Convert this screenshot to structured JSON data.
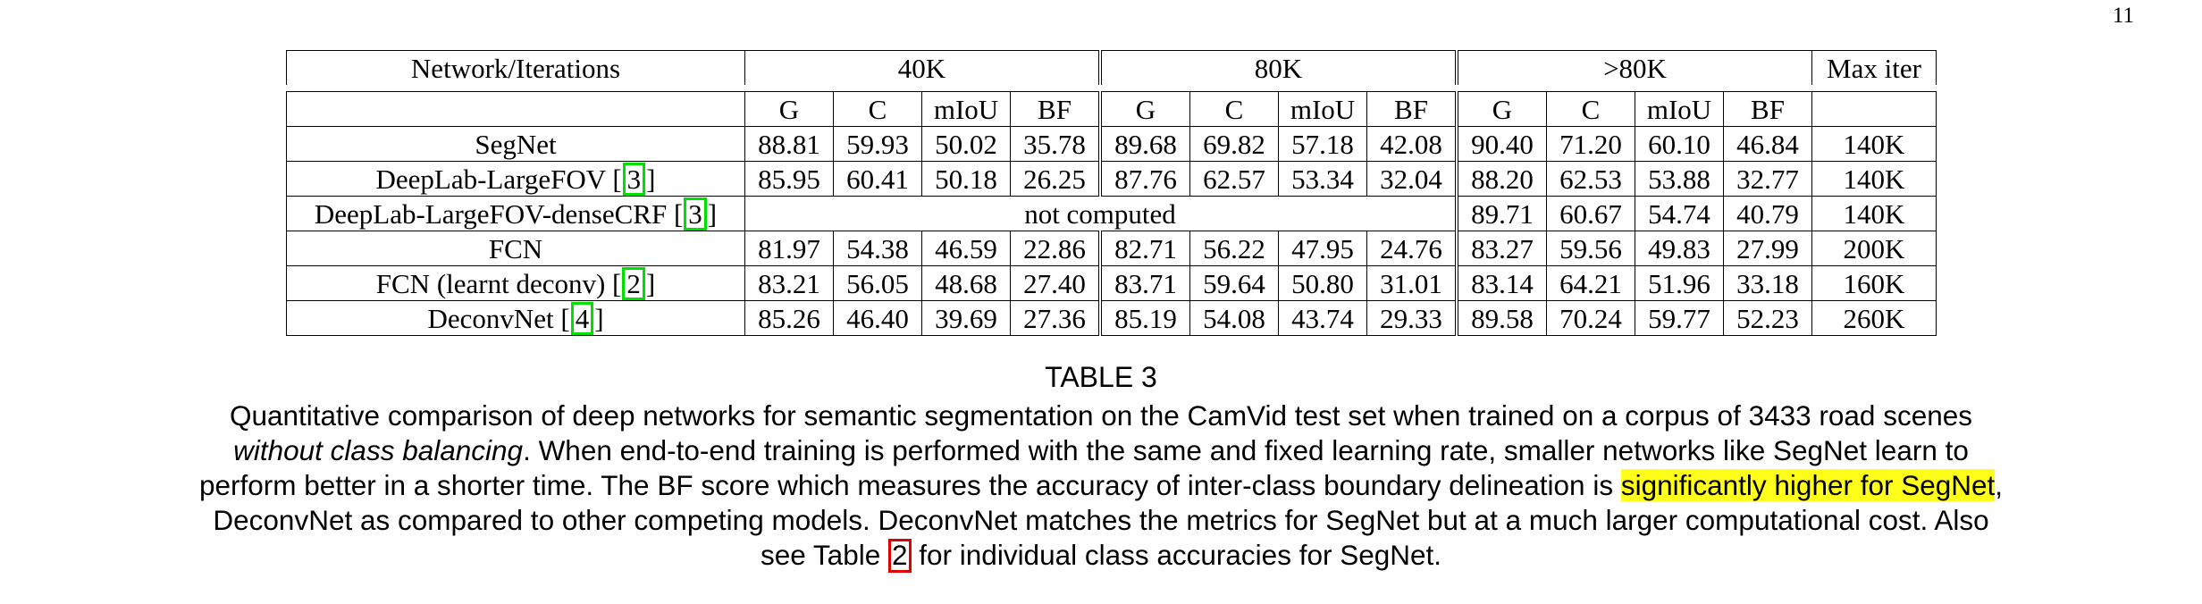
{
  "page_number": "11",
  "table": {
    "header": {
      "network_label": "Network/Iterations",
      "groups": [
        "40K",
        "80K",
        ">80K"
      ],
      "max_iter_label": "Max iter"
    },
    "metric_headers": [
      "G",
      "C",
      "mIoU",
      "BF"
    ],
    "rows": [
      {
        "name": "SegNet",
        "cite": "",
        "k40": [
          "88.81",
          "59.93",
          "50.02",
          "35.78"
        ],
        "k80": [
          "89.68",
          "69.82",
          "57.18",
          "42.08"
        ],
        "kmore": [
          "90.40",
          "71.20",
          "60.10",
          "46.84"
        ],
        "max_iter": "140K"
      },
      {
        "name": "DeepLab-LargeFOV [",
        "cite": "3",
        "k40": [
          "85.95",
          "60.41",
          "50.18",
          "26.25"
        ],
        "k80": [
          "87.76",
          "62.57",
          "53.34",
          "32.04"
        ],
        "kmore": [
          "88.20",
          "62.53",
          "53.88",
          "32.77"
        ],
        "max_iter": "140K"
      },
      {
        "name": "DeepLab-LargeFOV-denseCRF [",
        "cite": "3",
        "span_text": "not computed",
        "kmore": [
          "89.71",
          "60.67",
          "54.74",
          "40.79"
        ],
        "max_iter": "140K"
      },
      {
        "name": "FCN",
        "cite": "",
        "k40": [
          "81.97",
          "54.38",
          "46.59",
          "22.86"
        ],
        "k80": [
          "82.71",
          "56.22",
          "47.95",
          "24.76"
        ],
        "kmore": [
          "83.27",
          "59.56",
          "49.83",
          "27.99"
        ],
        "max_iter": "200K"
      },
      {
        "name": "FCN (learnt deconv) [",
        "cite": "2",
        "k40": [
          "83.21",
          "56.05",
          "48.68",
          "27.40"
        ],
        "k80": [
          "83.71",
          "59.64",
          "50.80",
          "31.01"
        ],
        "kmore": [
          "83.14",
          "64.21",
          "51.96",
          "33.18"
        ],
        "max_iter": "160K"
      },
      {
        "name": "DeconvNet [",
        "cite": "4",
        "k40": [
          "85.26",
          "46.40",
          "39.69",
          "27.36"
        ],
        "k80": [
          "85.19",
          "54.08",
          "43.74",
          "29.33"
        ],
        "kmore": [
          "89.58",
          "70.24",
          "59.77",
          "52.23"
        ],
        "max_iter": "260K"
      }
    ],
    "close_bracket": "]"
  },
  "caption": {
    "label": "TABLE 3",
    "line1": "Quantitative comparison of deep networks for semantic segmentation on the CamVid test set when trained on a corpus of 3433 road scenes",
    "line2_italic": "without class balancing",
    "line2_rest": ". When end-to-end training is performed with the same and fixed learning rate, smaller networks like SegNet learn to",
    "line3_pre": "perform better in a shorter time. The BF score which measures the accuracy of inter-class boundary delineation is ",
    "line3_highlight": "significantly higher for SegNet",
    "line3_post": ",",
    "line4": "DeconvNet as compared to other competing models. DeconvNet matches the metrics for SegNet but at a much larger computational cost. Also",
    "line5_pre": "see Table ",
    "line5_ref": "2",
    "line5_post": " for individual class accuracies for SegNet.",
    "highlight_color": "#ffff1a",
    "citation_box_color": "#00e000",
    "reference_box_color": "#e00000"
  }
}
